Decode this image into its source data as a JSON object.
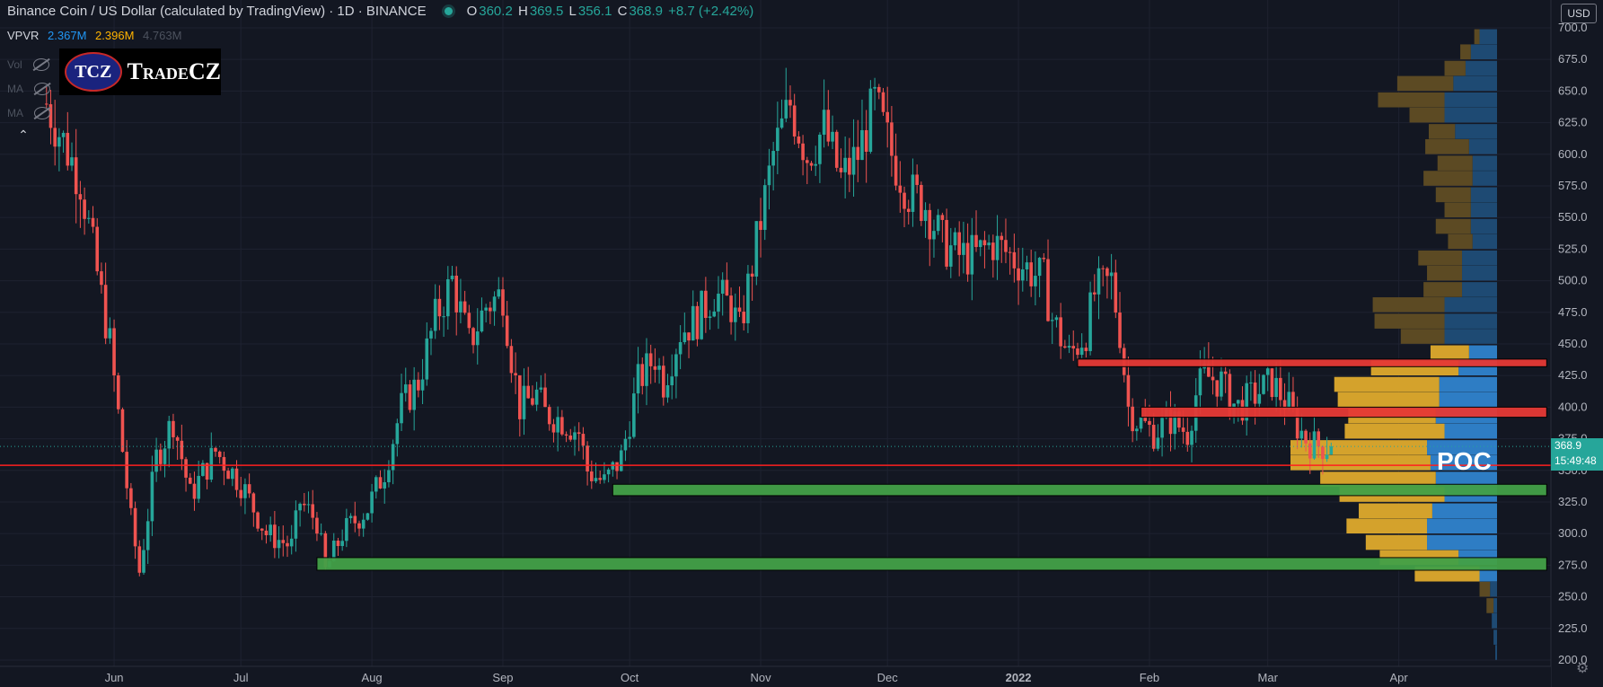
{
  "header": {
    "symbol": "Binance Coin / US Dollar (calculated by TradingView) · 1D · BINANCE",
    "o_label": "O",
    "o_value": "360.2",
    "h_label": "H",
    "h_value": "369.5",
    "l_label": "L",
    "l_value": "356.1",
    "c_label": "C",
    "c_value": "368.9",
    "change": "+8.7 (+2.42%)"
  },
  "vpvr": {
    "name": "VPVR",
    "v1": "2.367M",
    "v2": "2.396M",
    "v3": "4.763M"
  },
  "indicators": [
    "Vol",
    "MA",
    "MA"
  ],
  "logo": {
    "mark": "TCZ",
    "text": "TradeCZ"
  },
  "currency_button": "USD",
  "last_price": {
    "value": "368.9",
    "countdown": "15:49:48"
  },
  "poc_label": "POC",
  "colors": {
    "up": "#26a69a",
    "down": "#ef5350",
    "bg": "#131722",
    "resistance": "#e53935",
    "support": "#43a047",
    "vp_up": "#2e7dc4",
    "vp_down": "#d4a22c"
  },
  "chart_data": {
    "type": "candlestick",
    "title": "Binance Coin / US Dollar (calculated by TradingView) · 1D · BINANCE",
    "y_ticks": [
      200,
      225,
      250,
      275,
      300,
      325,
      350,
      375,
      400,
      425,
      450,
      475,
      500,
      525,
      550,
      575,
      600,
      625,
      650,
      675,
      700
    ],
    "y_tick_labels": [
      "200.0",
      "225.0",
      "250.0",
      "275.0",
      "300.0",
      "325.0",
      "350.0",
      "375.0",
      "400.0",
      "425.0",
      "450.0",
      "475.0",
      "500.0",
      "525.0",
      "550.0",
      "575.0",
      "600.0",
      "625.0",
      "650.0",
      "675.0",
      "700.0"
    ],
    "ylim": [
      195,
      722
    ],
    "x_tick_labels": [
      "Jun",
      "Jul",
      "Aug",
      "Sep",
      "Oct",
      "Nov",
      "Dec",
      "2022",
      "Feb",
      "Mar",
      "Apr"
    ],
    "x_ticks": [
      16,
      46,
      77,
      108,
      138,
      169,
      199,
      230,
      261,
      289,
      320
    ],
    "xlim": [
      -11,
      356
    ],
    "last_close": 368.9,
    "red_horizontal_line": 354,
    "zones": [
      {
        "kind": "resistance",
        "x_start": 244,
        "x_end": 355,
        "y_low": 432,
        "y_high": 438
      },
      {
        "kind": "resistance",
        "x_start": 259,
        "x_end": 355,
        "y_low": 392,
        "y_high": 400
      },
      {
        "kind": "support",
        "x_start": 134,
        "x_end": 355,
        "y_low": 330,
        "y_high": 339
      },
      {
        "kind": "support",
        "x_start": 64,
        "x_end": 355,
        "y_low": 271,
        "y_high": 281
      }
    ],
    "volume_profile": {
      "bin_size": 12.5,
      "bins": [
        {
          "price": 206,
          "up": 1,
          "down": 0
        },
        {
          "price": 218,
          "up": 2,
          "down": 0
        },
        {
          "price": 231,
          "up": 3,
          "down": 0
        },
        {
          "price": 243,
          "up": 2,
          "down": 4
        },
        {
          "price": 256,
          "up": 4,
          "down": 6
        },
        {
          "price": 268,
          "up": 10,
          "down": 37
        },
        {
          "price": 281,
          "up": 22,
          "down": 45
        },
        {
          "price": 293,
          "up": 40,
          "down": 35
        },
        {
          "price": 306,
          "up": 40,
          "down": 46
        },
        {
          "price": 318,
          "up": 37,
          "down": 42
        },
        {
          "price": 331,
          "up": 30,
          "down": 60
        },
        {
          "price": 343,
          "up": 35,
          "down": 66
        },
        {
          "price": 356,
          "up": 38,
          "down": 80
        },
        {
          "price": 368,
          "up": 40,
          "down": 78
        },
        {
          "price": 381,
          "up": 30,
          "down": 57
        },
        {
          "price": 393,
          "up": 35,
          "down": 50
        },
        {
          "price": 406,
          "up": 33,
          "down": 58
        },
        {
          "price": 418,
          "up": 33,
          "down": 60
        },
        {
          "price": 431,
          "up": 22,
          "down": 50
        },
        {
          "price": 443,
          "up": 16,
          "down": 22
        },
        {
          "price": 456,
          "up": 30,
          "down": 25
        },
        {
          "price": 468,
          "up": 30,
          "down": 40
        },
        {
          "price": 481,
          "up": 30,
          "down": 41
        },
        {
          "price": 493,
          "up": 20,
          "down": 22
        },
        {
          "price": 506,
          "up": 20,
          "down": 20
        },
        {
          "price": 518,
          "up": 20,
          "down": 25
        },
        {
          "price": 531,
          "up": 14,
          "down": 14
        },
        {
          "price": 543,
          "up": 15,
          "down": 20
        },
        {
          "price": 556,
          "up": 15,
          "down": 15
        },
        {
          "price": 568,
          "up": 15,
          "down": 20
        },
        {
          "price": 581,
          "up": 14,
          "down": 28
        },
        {
          "price": 593,
          "up": 14,
          "down": 20
        },
        {
          "price": 606,
          "up": 16,
          "down": 25
        },
        {
          "price": 618,
          "up": 24,
          "down": 15
        },
        {
          "price": 631,
          "up": 30,
          "down": 20
        },
        {
          "price": 643,
          "up": 30,
          "down": 38
        },
        {
          "price": 656,
          "up": 25,
          "down": 32
        },
        {
          "price": 668,
          "up": 18,
          "down": 12
        },
        {
          "price": 681,
          "up": 15,
          "down": 6
        },
        {
          "price": 693,
          "up": 10,
          "down": 3
        }
      ]
    },
    "series": [
      {
        "name": "",
        "ohlc_path": [
          [
            0,
            640
          ],
          [
            8,
            580
          ],
          [
            15,
            450
          ],
          [
            20,
            310
          ],
          [
            22,
            270
          ],
          [
            26,
            360
          ],
          [
            30,
            390
          ],
          [
            34,
            330
          ],
          [
            40,
            365
          ],
          [
            46,
            340
          ],
          [
            52,
            300
          ],
          [
            58,
            290
          ],
          [
            60,
            325
          ],
          [
            64,
            310
          ],
          [
            66,
            270
          ],
          [
            70,
            300
          ],
          [
            76,
            320
          ],
          [
            80,
            350
          ],
          [
            84,
            400
          ],
          [
            88,
            420
          ],
          [
            92,
            470
          ],
          [
            96,
            500
          ],
          [
            100,
            450
          ],
          [
            104,
            480
          ],
          [
            108,
            490
          ],
          [
            110,
            440
          ],
          [
            112,
            400
          ],
          [
            116,
            410
          ],
          [
            118,
            395
          ],
          [
            122,
            390
          ],
          [
            126,
            380
          ],
          [
            128,
            350
          ],
          [
            132,
            340
          ],
          [
            136,
            360
          ],
          [
            140,
            420
          ],
          [
            144,
            440
          ],
          [
            146,
            420
          ],
          [
            150,
            460
          ],
          [
            154,
            470
          ],
          [
            158,
            490
          ],
          [
            162,
            480
          ],
          [
            164,
            460
          ],
          [
            168,
            530
          ],
          [
            172,
            600
          ],
          [
            176,
            640
          ],
          [
            180,
            600
          ],
          [
            184,
            620
          ],
          [
            188,
            580
          ],
          [
            192,
            600
          ],
          [
            196,
            640
          ],
          [
            200,
            600
          ],
          [
            204,
            570
          ],
          [
            208,
            560
          ],
          [
            212,
            530
          ],
          [
            216,
            520
          ],
          [
            220,
            520
          ],
          [
            224,
            530
          ],
          [
            228,
            520
          ],
          [
            232,
            510
          ],
          [
            236,
            500
          ],
          [
            238,
            470
          ],
          [
            242,
            440
          ],
          [
            246,
            460
          ],
          [
            248,
            490
          ],
          [
            252,
            500
          ],
          [
            254,
            460
          ],
          [
            256,
            400
          ],
          [
            258,
            390
          ],
          [
            262,
            380
          ],
          [
            266,
            390
          ],
          [
            270,
            380
          ],
          [
            272,
            410
          ],
          [
            274,
            425
          ],
          [
            278,
            420
          ],
          [
            280,
            405
          ],
          [
            282,
            400
          ],
          [
            286,
            410
          ],
          [
            290,
            420
          ],
          [
            294,
            400
          ],
          [
            296,
            385
          ],
          [
            298,
            375
          ],
          [
            300,
            370
          ],
          [
            304,
            369
          ]
        ]
      }
    ]
  }
}
